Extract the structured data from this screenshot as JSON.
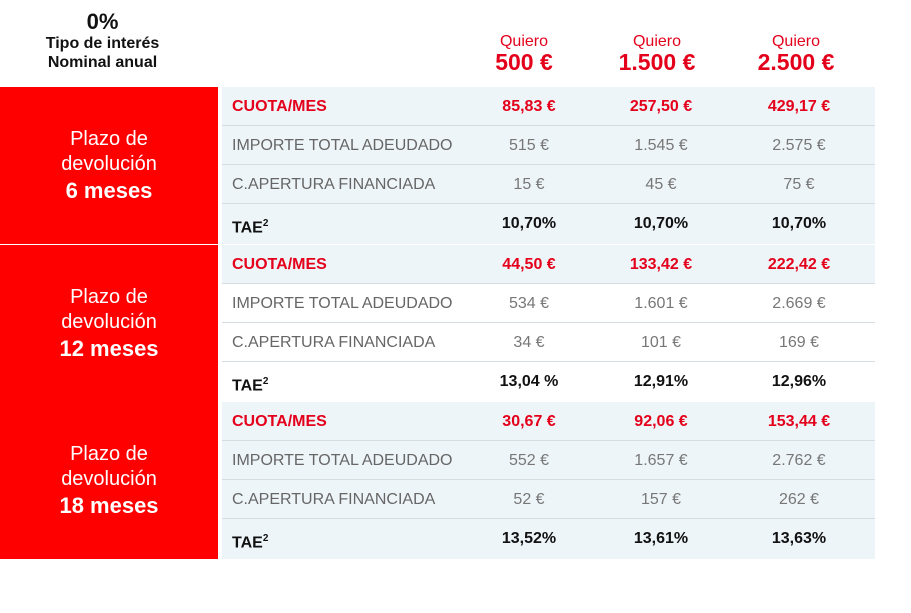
{
  "header": {
    "rate": "0%",
    "rate_label_1": "Tipo de interés",
    "rate_label_2": "Nominal anual",
    "columns": [
      {
        "prefix": "Quiero",
        "amount": "500 €"
      },
      {
        "prefix": "Quiero",
        "amount": "1.500 €"
      },
      {
        "prefix": "Quiero",
        "amount": "2.500 €"
      }
    ]
  },
  "row_labels": {
    "cuota": "CUOTA/MES",
    "importe": "IMPORTE TOTAL ADEUDADO",
    "apertura": "C.APERTURA FINANCIADA",
    "tae": "TAE",
    "tae_sup": "2"
  },
  "blocks": [
    {
      "term_1": "Plazo de",
      "term_2": "devolución",
      "months": "6 meses",
      "cuota": [
        "85,83 €",
        "257,50 €",
        "429,17 €"
      ],
      "importe": [
        "515 €",
        "1.545 €",
        "2.575 €"
      ],
      "apertura": [
        "15 €",
        "45 €",
        "75 €"
      ],
      "tae": [
        "10,70%",
        "10,70%",
        "10,70%"
      ]
    },
    {
      "term_1": "Plazo de",
      "term_2": "devolución",
      "months": "12 meses",
      "cuota": [
        "44,50 €",
        "133,42 €",
        "222,42 €"
      ],
      "importe": [
        "534 €",
        "1.601 €",
        "2.669 €"
      ],
      "apertura": [
        "34 €",
        "101 €",
        "169 €"
      ],
      "tae": [
        "13,04 %",
        "12,91%",
        "12,96%"
      ]
    },
    {
      "term_1": "Plazo de",
      "term_2": "devolución",
      "months": "18 meses",
      "cuota": [
        "30,67 €",
        "92,06 €",
        "153,44 €"
      ],
      "importe": [
        "552 €",
        "1.657 €",
        "2.762 €"
      ],
      "apertura": [
        "52 €",
        "157 €",
        "262 €"
      ],
      "tae": [
        "13,52%",
        "13,61%",
        "13,63%"
      ]
    }
  ],
  "colors": {
    "accent_red": "#ff0000",
    "text_red": "#e4001b",
    "row_shade": "#eef5f9"
  }
}
